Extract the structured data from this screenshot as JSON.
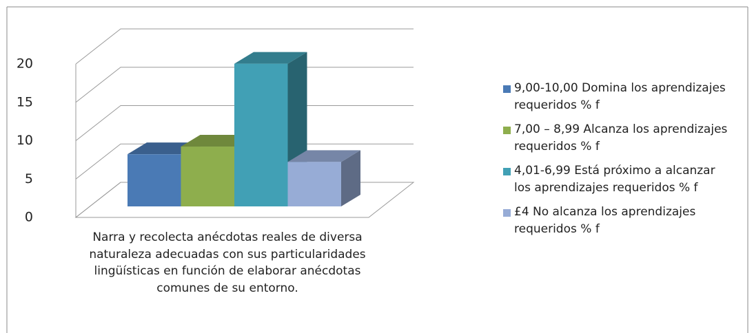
{
  "chart_data": {
    "type": "bar3d",
    "categories": [
      "Narra y recolecta anécdotas reales de diversa naturaleza adecuadas con sus particularidades lingüísticas en función de elaborar anécdotas comunes de su entorno."
    ],
    "series": [
      {
        "name": "9,00-10,00 Domina los aprendizajes requeridos % f",
        "color": "#4a7ab5",
        "values": [
          6.8
        ]
      },
      {
        "name": "7,00 – 8,99 Alcanza los aprendizajes requeridos % f",
        "color": "#8eae4d",
        "values": [
          7.8
        ]
      },
      {
        "name": "4,01-6,99 Está próximo a alcanzar los aprendizajes requeridos % f",
        "color": "#41a0b5",
        "values": [
          18.6
        ]
      },
      {
        "name": "£4 No alcanza los aprendizajes requeridos % f",
        "color": "#97acd6",
        "values": [
          5.8
        ]
      }
    ],
    "ylim": [
      0,
      20
    ],
    "yticks": [
      0,
      5,
      10,
      15,
      20
    ],
    "grid": true,
    "legend": "right"
  }
}
